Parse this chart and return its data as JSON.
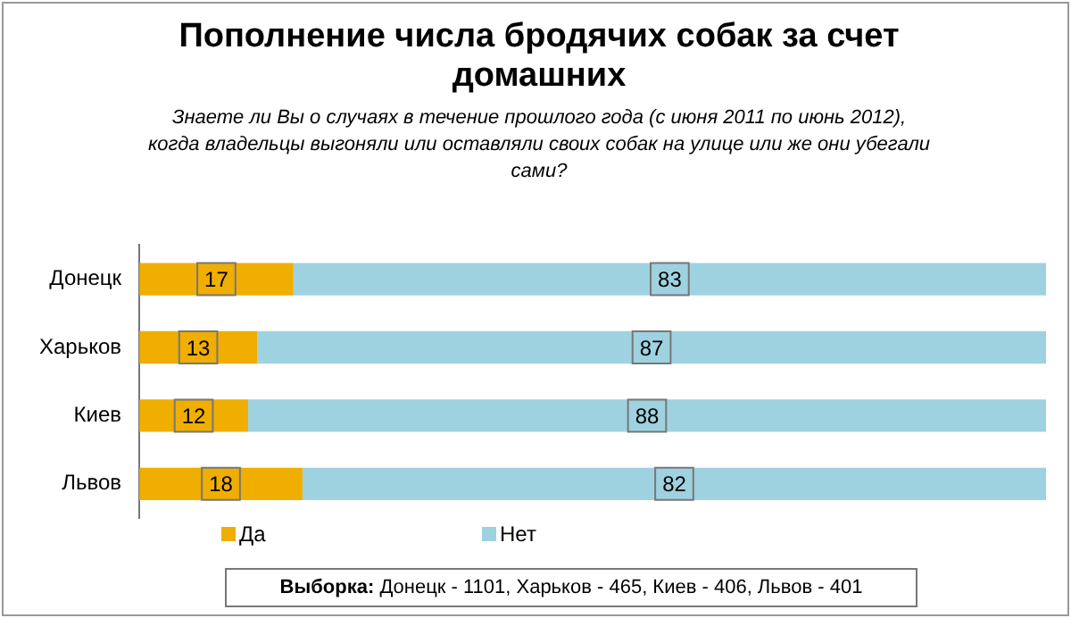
{
  "chart_data": {
    "type": "bar",
    "orientation": "horizontal",
    "stacked": true,
    "title": "Пополнение числа бродячих собак за счет домашних",
    "subtitle": "Знаете ли Вы о случаях в течение прошлого года (с июня 2011 по июнь 2012), когда владельцы выгоняли или оставляли своих собак на улице или же они убегали сами?",
    "categories": [
      "Донецк",
      "Харьков",
      "Киев",
      "Львов"
    ],
    "series": [
      {
        "name": "Да",
        "color": "#f0ae00",
        "values": [
          17,
          13,
          12,
          18
        ]
      },
      {
        "name": "Нет",
        "color": "#9fd2e0",
        "values": [
          83,
          87,
          88,
          82
        ]
      }
    ],
    "xlim": [
      0,
      100
    ],
    "tick_labels": "y",
    "grid": false,
    "legend": "bottom",
    "data_labels": true,
    "annotations": [
      "$^{}$Выборка: Донецк - 1101, Харьков - 465, Киев - 406, Львов - 401"
    ]
  }
}
